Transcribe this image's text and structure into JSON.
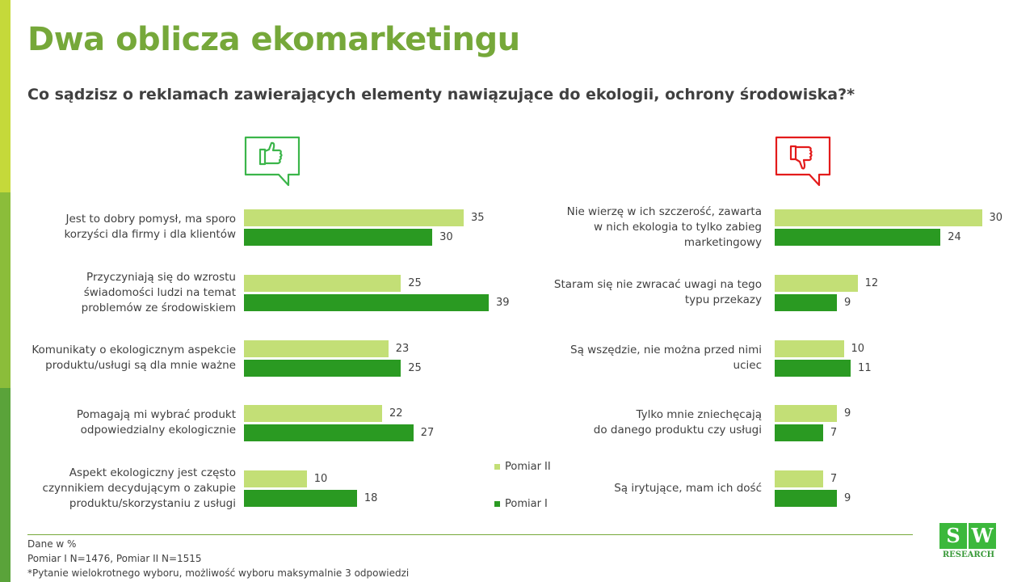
{
  "title": "Dwa oblicza ekomarketingu",
  "question": "Co sądzisz o reklamach zawierających elementy nawiązujące do ekologii, ochrony środowiska?*",
  "colors": {
    "pomiar2": "#c3df76",
    "pomiar1": "#2a9a22",
    "title": "#76a83a",
    "positive": "#3bb54a",
    "negative": "#e31b1b"
  },
  "chart_data": [
    {
      "type": "bar",
      "orientation": "horizontal",
      "sentiment": "positive",
      "icon": "thumbs-up-icon",
      "categories": [
        "Jest to dobry pomysł, ma sporo korzyści dla firmy i dla klientów",
        "Przyczyniają się do wzrostu świadomości ludzi na temat problemów ze środowiskiem",
        "Komunikaty o ekologicznym aspekcie produktu/usługi są dla mnie ważne",
        "Pomagają mi wybrać produkt odpowiedzialny ekologicznie",
        "Aspekt ekologiczny jest często czynnikiem decydującym o zakupie produktu/skorzystaniu z usługi"
      ],
      "labels_lines": [
        [
          "Jest to dobry pomysł, ma sporo",
          "korzyści dla firmy i dla klientów"
        ],
        [
          "Przyczyniają się do wzrostu",
          "świadomości ludzi na temat",
          "problemów ze środowiskiem"
        ],
        [
          "Komunikaty o ekologicznym aspekcie",
          "produktu/usługi są dla mnie ważne"
        ],
        [
          "Pomagają mi wybrać produkt",
          "odpowiedzialny ekologicznie"
        ],
        [
          "Aspekt ekologiczny jest często",
          "czynnikiem decydującym o zakupie",
          "produktu/skorzystaniu z usługi"
        ]
      ],
      "series": [
        {
          "name": "Pomiar II",
          "values": [
            35,
            25,
            23,
            22,
            10
          ]
        },
        {
          "name": "Pomiar I",
          "values": [
            30,
            39,
            25,
            27,
            18
          ]
        }
      ]
    },
    {
      "type": "bar",
      "orientation": "horizontal",
      "sentiment": "negative",
      "icon": "thumbs-down-icon",
      "categories": [
        "Nie wierzę w ich szczerość, zawarta w nich ekologia to tylko zabieg marketingowy",
        "Staram się nie zwracać uwagi na tego typu przekazy",
        "Są wszędzie, nie można przed nimi uciec",
        "Tylko mnie zniechęcają do danego produktu czy usługi",
        "Są irytujące, mam ich dość"
      ],
      "labels_lines": [
        [
          "Nie wierzę w ich szczerość, zawarta",
          "w nich ekologia to tylko zabieg",
          "marketingowy"
        ],
        [
          "Staram się nie zwracać uwagi na tego",
          "typu przekazy"
        ],
        [
          "Są wszędzie, nie można przed nimi",
          "uciec"
        ],
        [
          "Tylko mnie zniechęcają",
          "do danego produktu czy usługi"
        ],
        [
          "Są irytujące, mam ich dość"
        ]
      ],
      "series": [
        {
          "name": "Pomiar II",
          "values": [
            30,
            12,
            10,
            9,
            7
          ]
        },
        {
          "name": "Pomiar I",
          "values": [
            24,
            9,
            11,
            7,
            9
          ]
        }
      ]
    }
  ],
  "legend": {
    "pomiar2": "Pomiar II",
    "pomiar1": "Pomiar I"
  },
  "notes": [
    "Dane w %",
    "Pomiar I N=1476, Pomiar II N=1515",
    "*Pytanie wielokrotnego wyboru, możliwość wyboru maksymalnie 3 odpowiedzi"
  ],
  "logo": {
    "text": "SW",
    "sub": "RESEARCH"
  }
}
